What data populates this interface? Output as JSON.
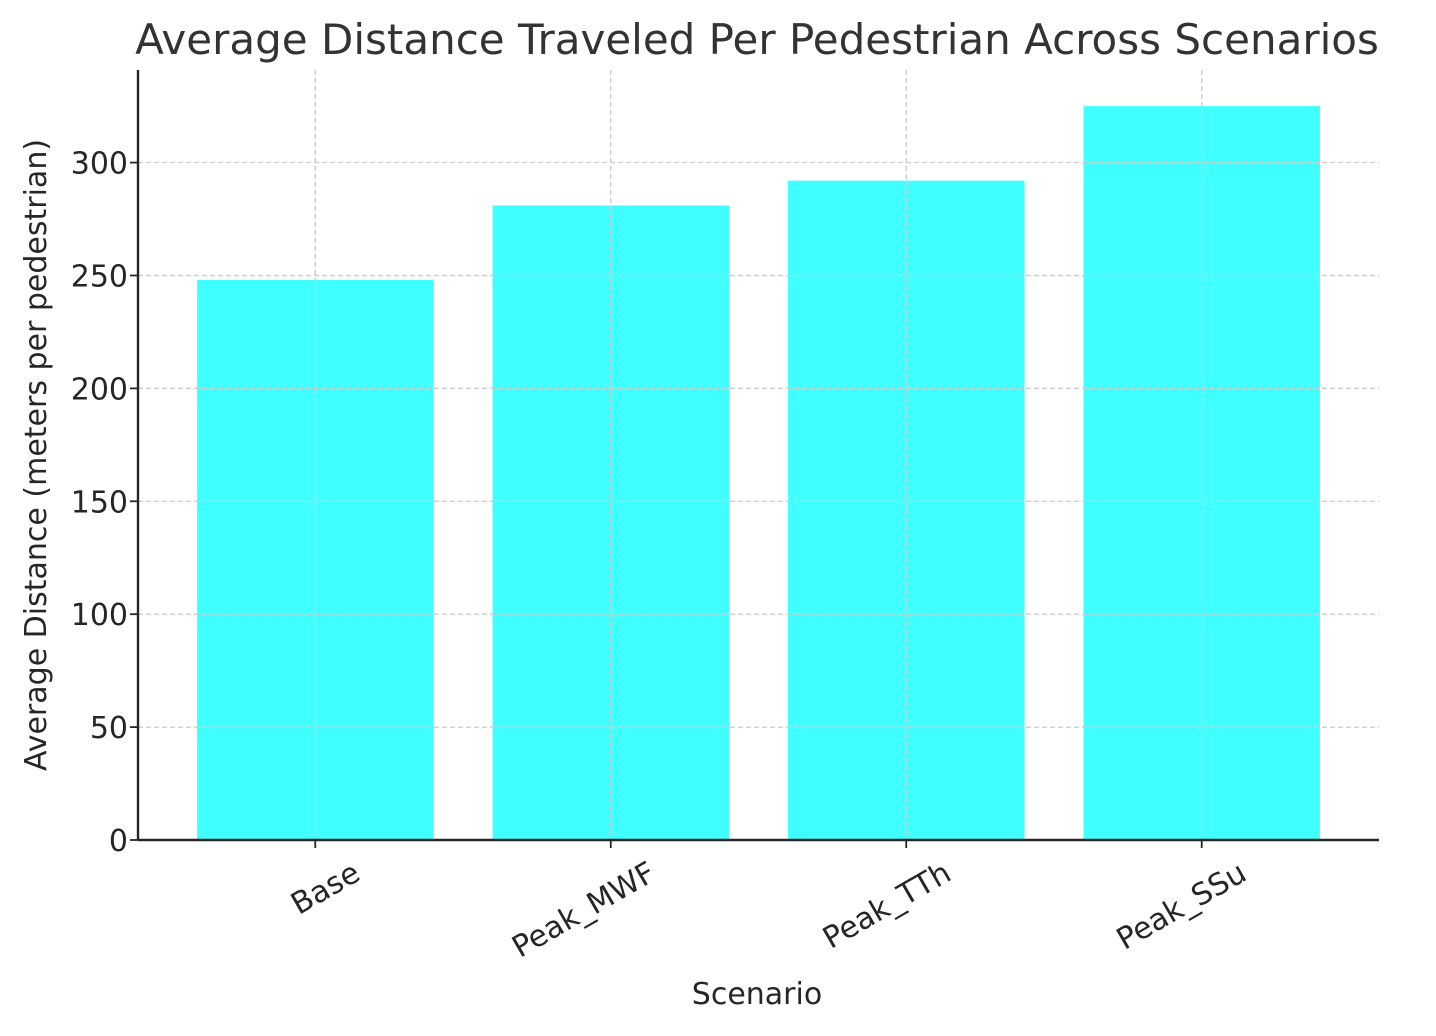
{
  "chart_data": {
    "type": "bar",
    "title": "Average Distance Traveled Per Pedestrian Across Scenarios",
    "xlabel": "Scenario",
    "ylabel": "Average Distance (meters per pedestrian)",
    "categories": [
      "Base",
      "Peak_MWF",
      "Peak_TTh",
      "Peak_SSu"
    ],
    "values": [
      248,
      281,
      292,
      325
    ],
    "ylim": [
      0,
      341
    ],
    "yticks": [
      0,
      50,
      100,
      150,
      200,
      250,
      300
    ],
    "grid": true,
    "bar_color": "#40ffff",
    "x_tick_rotation_deg": -30
  }
}
